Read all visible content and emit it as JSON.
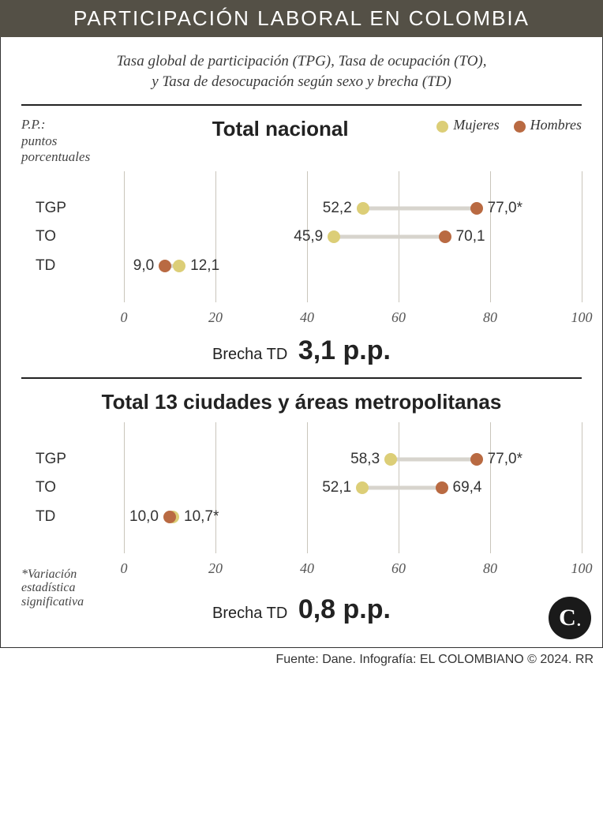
{
  "title": "PARTICIPACIÓN LABORAL EN COLOMBIA",
  "subtitle_line1": "Tasa global de participación (TPG), Tasa de ocupación (TO),",
  "subtitle_line2": "y Tasa de desocupación según sexo y brecha (TD)",
  "legend": {
    "mujeres_label": "Mujeres",
    "hombres_label": "Hombres"
  },
  "colors": {
    "mujeres": "#dcce77",
    "hombres": "#b96a42",
    "connector": "#d7d4cd",
    "grid": "#c9c5bb",
    "header_bg": "#545046",
    "text": "#333333"
  },
  "axis": {
    "min": 0,
    "max": 100,
    "ticks": [
      0,
      20,
      40,
      60,
      80,
      100
    ],
    "tick_labels": [
      "0",
      "20",
      "40",
      "60",
      "80",
      "100"
    ]
  },
  "typography": {
    "title_fontsize": 26,
    "panel_title_fontsize": 26,
    "body_fontsize": 19,
    "brecha_big_fontsize": 34
  },
  "pp_note": {
    "l1": "P.P.:",
    "l2": "puntos",
    "l3": "porcentuales"
  },
  "footnote": {
    "l1": "*Variación",
    "l2": "estadística",
    "l3": "significativa"
  },
  "panels": [
    {
      "title": "Total nacional",
      "brecha_label": "Brecha TD",
      "brecha_value": "3,1 p.p.",
      "rows": [
        {
          "label": "TGP",
          "mujeres": 52.2,
          "hombres": 77.0,
          "mujeres_label": "52,2",
          "hombres_label": "77,0*"
        },
        {
          "label": "TO",
          "mujeres": 45.9,
          "hombres": 70.1,
          "mujeres_label": "45,9",
          "hombres_label": "70,1"
        },
        {
          "label": "TD",
          "mujeres": 12.1,
          "hombres": 9.0,
          "mujeres_label": "12,1",
          "hombres_label": "9,0"
        }
      ]
    },
    {
      "title": "Total 13 ciudades y áreas metropolitanas",
      "brecha_label": "Brecha TD",
      "brecha_value": "0,8 p.p.",
      "rows": [
        {
          "label": "TGP",
          "mujeres": 58.3,
          "hombres": 77.0,
          "mujeres_label": "58,3",
          "hombres_label": "77,0*"
        },
        {
          "label": "TO",
          "mujeres": 52.1,
          "hombres": 69.4,
          "mujeres_label": "52,1",
          "hombres_label": "69,4"
        },
        {
          "label": "TD",
          "mujeres": 10.7,
          "hombres": 10.0,
          "mujeres_label": "10,7*",
          "hombres_label": "10,0"
        }
      ]
    }
  ],
  "logo_text": "C",
  "source": "Fuente: Dane. Infografía: EL COLOMBIANO © 2024. RR"
}
